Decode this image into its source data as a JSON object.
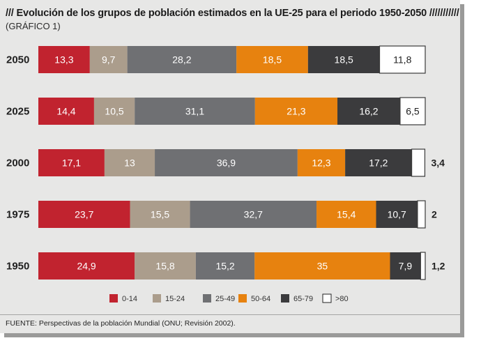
{
  "header": {
    "title": "/// Evolución de los grupos de población estimados en la UE-25 para el periodo 1950-2050 ///////////",
    "subtitle": "(GRÁFICO 1)"
  },
  "footer": {
    "source": "FUENTE: Perspectivas de la población Mundial (ONU; Revisión 2002)."
  },
  "chart_data": {
    "type": "bar",
    "orientation": "horizontal",
    "stacked": true,
    "title": "Evolución de los grupos de población estimados en la UE-25 para el periodo 1950-2050",
    "categories": [
      "2050",
      "2025",
      "2000",
      "1975",
      "1950"
    ],
    "series": [
      {
        "name": "0-14",
        "color": "#c1232f",
        "text_color": "#ffffff",
        "values": [
          13.3,
          14.4,
          17.1,
          23.7,
          24.9
        ]
      },
      {
        "name": "15-24",
        "color": "#ab9d8c",
        "text_color": "#ffffff",
        "values": [
          9.7,
          10.5,
          13,
          15.5,
          15.8
        ]
      },
      {
        "name": "25-49",
        "color": "#6f7073",
        "text_color": "#ffffff",
        "values": [
          28.2,
          31.1,
          36.9,
          32.7,
          15.2
        ]
      },
      {
        "name": "50-64",
        "color": "#e7820f",
        "text_color": "#ffffff",
        "values": [
          18.5,
          21.3,
          12.3,
          15.4,
          35
        ]
      },
      {
        "name": "65-79",
        "color": "#3b3b3d",
        "text_color": "#ffffff",
        "values": [
          18.5,
          16.2,
          17.2,
          10.7,
          7.9
        ]
      },
      {
        "name": ">80",
        "color": "#ffffff",
        "text_color": "#1f1f1f",
        "values": [
          11.8,
          6.5,
          3.4,
          2,
          1.2
        ]
      }
    ],
    "labels": [
      [
        "13,3",
        "9,7",
        "28,2",
        "18,5",
        "18,5",
        "11,8"
      ],
      [
        "14,4",
        "10,5",
        "31,1",
        "21,3",
        "16,2",
        "6,5"
      ],
      [
        "17,1",
        "13",
        "36,9",
        "12,3",
        "17,2",
        "3,4"
      ],
      [
        "23,7",
        "15,5",
        "32,7",
        "15,4",
        "10,7",
        "2"
      ],
      [
        "24,9",
        "15,8",
        "15,2",
        "35",
        "7,9",
        "1,2"
      ]
    ],
    "legend_position": "bottom",
    "grid": false
  }
}
